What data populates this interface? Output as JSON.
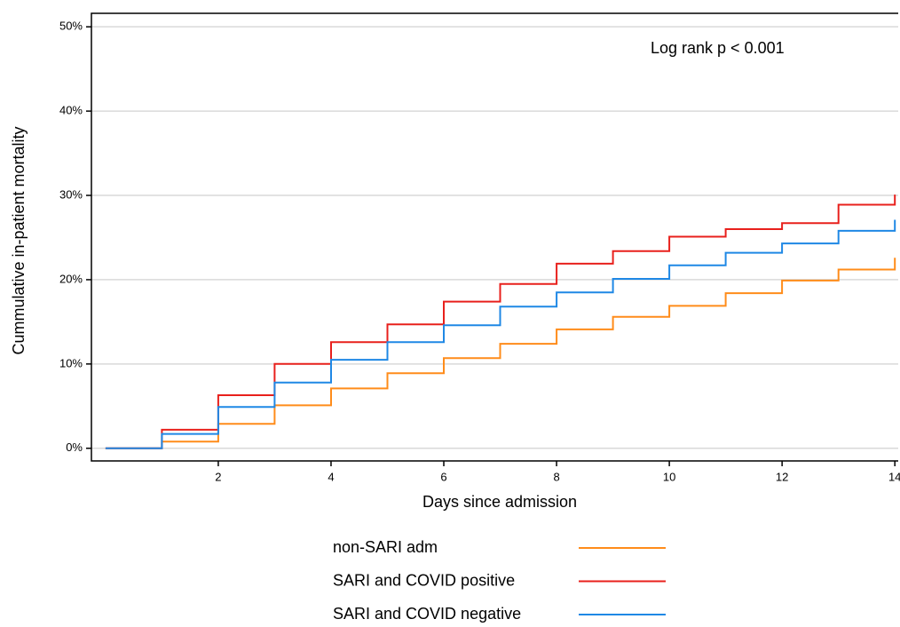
{
  "chart_data": {
    "type": "step",
    "annotation": "Log rank p < 0.001",
    "x_label": "Days since admission",
    "y_label": "Cummulative in-patient mortality",
    "x": [
      0,
      1,
      2,
      3,
      4,
      5,
      6,
      7,
      8,
      9,
      10,
      11,
      12,
      13,
      14
    ],
    "series": [
      {
        "name": "non-SARI adm",
        "color": "#ff8c1a",
        "values": [
          0,
          0.8,
          2.9,
          5.1,
          7.1,
          8.9,
          10.7,
          12.4,
          14.1,
          15.6,
          16.9,
          18.4,
          19.9,
          21.2,
          22.6
        ]
      },
      {
        "name": "SARI and COVID positive",
        "color": "#e8201c",
        "values": [
          0,
          2.2,
          6.3,
          10.0,
          12.6,
          14.7,
          17.4,
          19.5,
          21.9,
          23.4,
          25.1,
          26.0,
          26.7,
          28.9,
          30.1
        ]
      },
      {
        "name": "SARI and COVID negative",
        "color": "#1f88e5",
        "values": [
          0,
          1.7,
          4.9,
          7.8,
          10.5,
          12.6,
          14.6,
          16.8,
          18.5,
          20.1,
          21.7,
          23.2,
          24.3,
          25.8,
          27.1
        ]
      }
    ],
    "xlim": [
      -0.25,
      14.06
    ],
    "xticks": [
      2,
      4,
      6,
      8,
      10,
      12,
      14
    ],
    "ylim": [
      -1.5,
      51.6
    ],
    "yticks": [
      {
        "value": 0,
        "label": "0%"
      },
      {
        "value": 10,
        "label": "10%"
      },
      {
        "value": 20,
        "label": "20%"
      },
      {
        "value": 30,
        "label": "30%"
      },
      {
        "value": 40,
        "label": "40%"
      },
      {
        "value": 50,
        "label": "50%"
      }
    ],
    "grid": true
  }
}
